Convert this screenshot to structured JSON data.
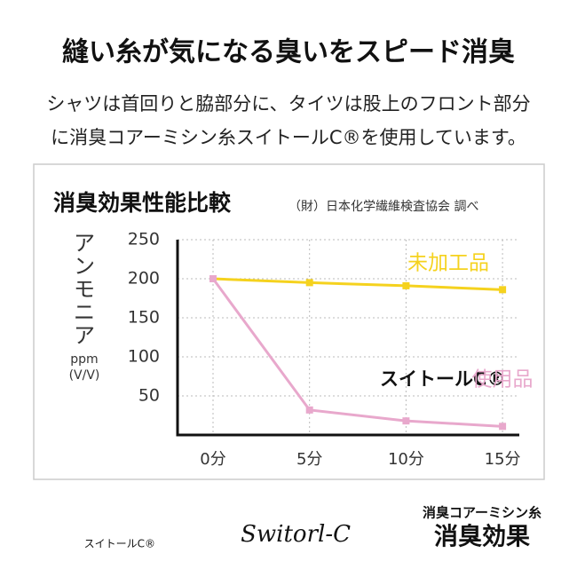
{
  "header": {
    "title": "縫い糸が気になる臭いをスピード消臭",
    "lines": [
      "シャツは首回りと脇部分に、タイツは股上のフロント部分",
      "に消臭コアーミシン糸スイトールC®を使用しています。"
    ]
  },
  "chart_data": {
    "type": "line",
    "title": "消臭効果性能比較",
    "subtitle": "（財）日本化学繊維検査協会 調べ",
    "y_label": [
      "ア",
      "ン",
      "モ",
      "ニ",
      "ア"
    ],
    "y_unit": [
      "ppm",
      "(V/V)"
    ],
    "categories": [
      "0分",
      "5分",
      "10分",
      "15分"
    ],
    "series": [
      {
        "name": "未加工品",
        "color": "#f5d21e",
        "values": [
          200,
          195,
          191,
          186
        ]
      },
      {
        "name": "使用品",
        "color": "#e8a8cc",
        "values": [
          200,
          32,
          18,
          11
        ]
      }
    ],
    "annotation": "スイトールC®",
    "ylim": [
      0,
      250
    ],
    "yticks": [
      50,
      100,
      150,
      200,
      250
    ],
    "grid": true
  },
  "footer": {
    "brand_small": "スイトールC®",
    "brand_script": "Switorl-C",
    "product": "消臭コアーミシン糸",
    "effect": "消臭効果"
  }
}
